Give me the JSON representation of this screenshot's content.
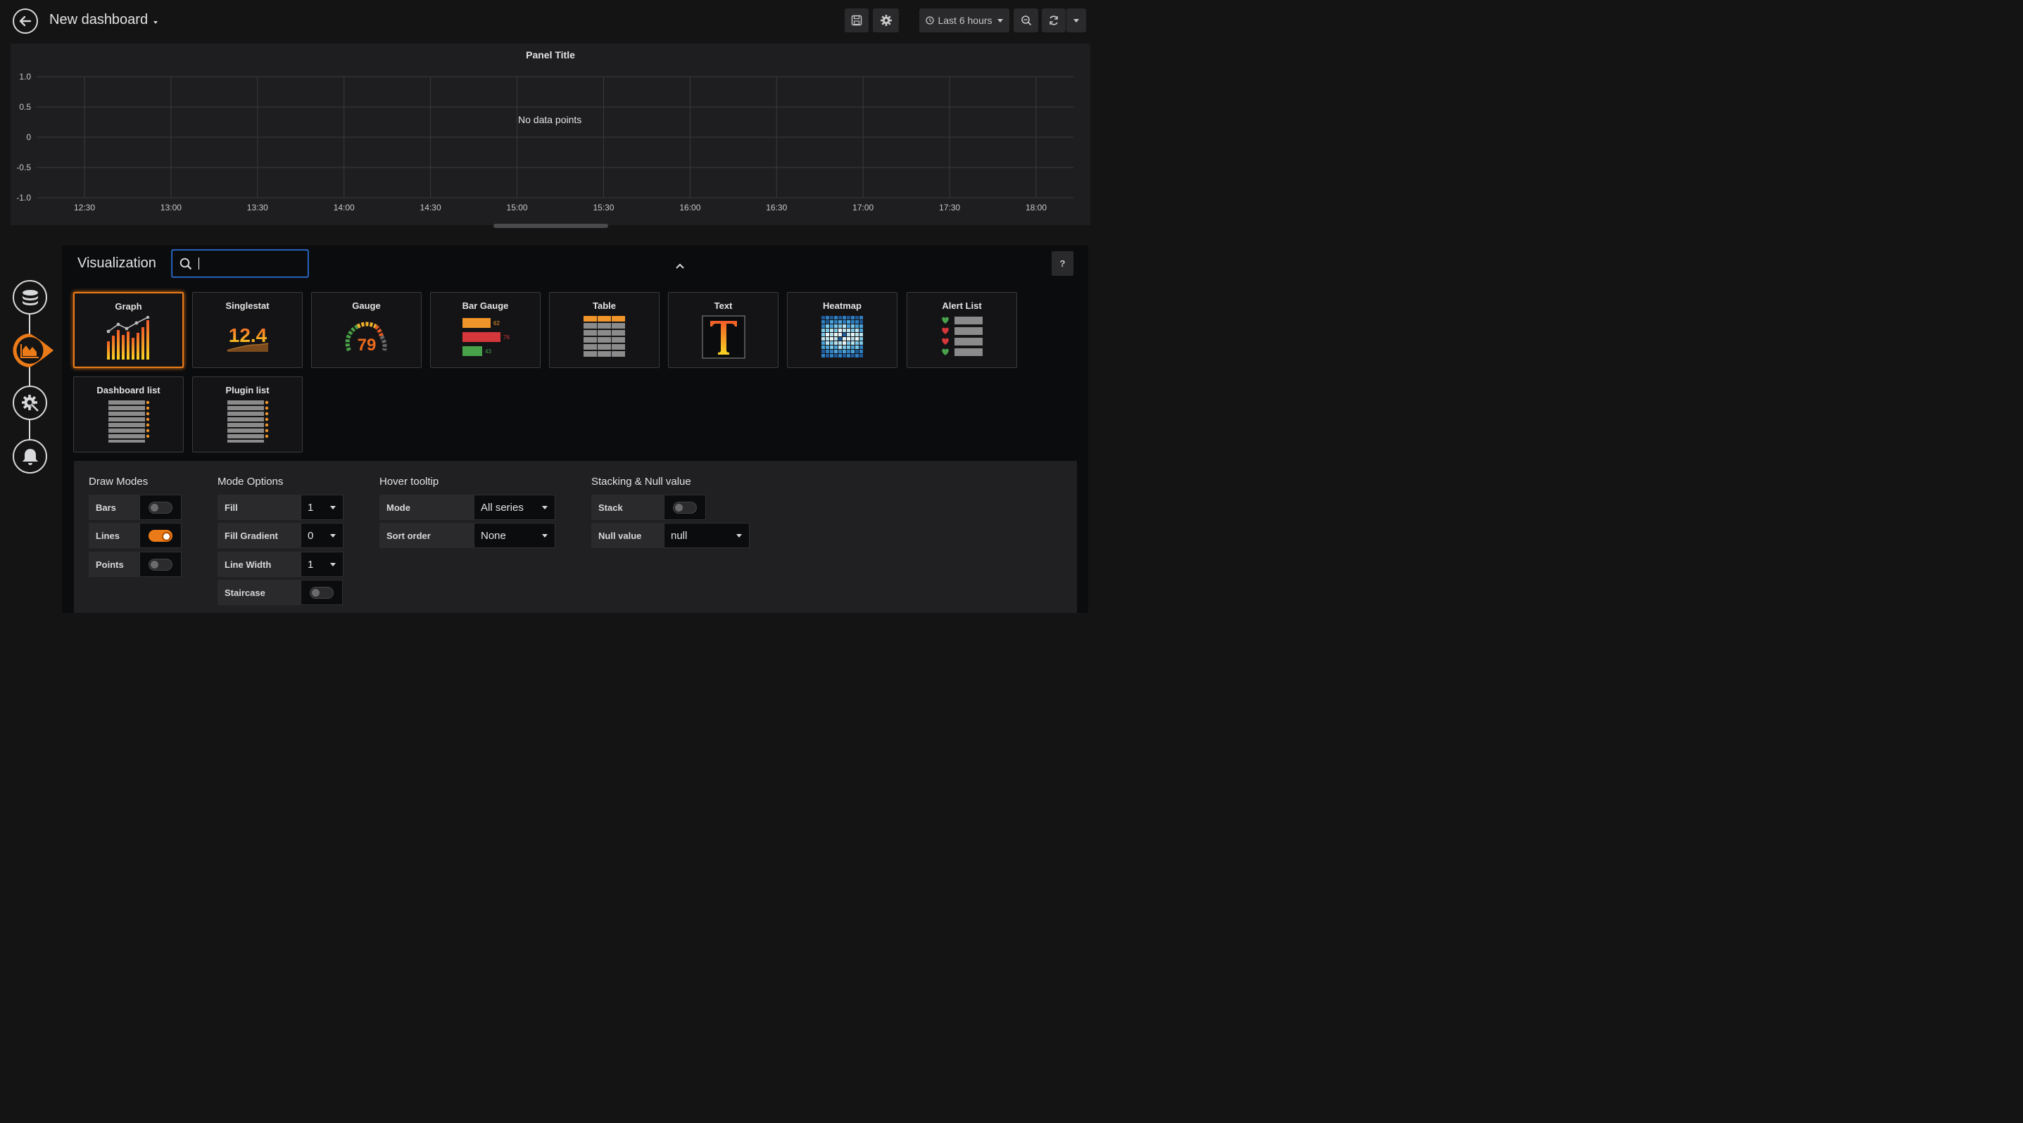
{
  "header": {
    "title": "New dashboard",
    "time_range": "Last 6 hours"
  },
  "panel": {
    "title": "Panel Title",
    "no_data": "No data points"
  },
  "chart_data": {
    "type": "line",
    "title": "Panel Title",
    "x": [
      "12:30",
      "13:00",
      "13:30",
      "14:00",
      "14:30",
      "15:00",
      "15:30",
      "16:00",
      "16:30",
      "17:00",
      "17:30",
      "18:00"
    ],
    "y_ticks": [
      "1.0",
      "0.5",
      "0",
      "-0.5",
      "-1.0"
    ],
    "ylim": [
      -1.0,
      1.0
    ],
    "series": [],
    "annotation": "No data points"
  },
  "visualization": {
    "heading": "Visualization",
    "search_value": "",
    "types": [
      {
        "label": "Graph",
        "selected": true
      },
      {
        "label": "Singlestat",
        "value": "12.4"
      },
      {
        "label": "Gauge",
        "value": "79"
      },
      {
        "label": "Bar Gauge",
        "values": [
          "62",
          "76",
          "43"
        ]
      },
      {
        "label": "Table"
      },
      {
        "label": "Text"
      },
      {
        "label": "Heatmap"
      },
      {
        "label": "Alert List"
      },
      {
        "label": "Dashboard list"
      },
      {
        "label": "Plugin list"
      }
    ],
    "help": "?"
  },
  "options": {
    "draw_modes": {
      "title": "Draw Modes",
      "bars": "Bars",
      "lines": "Lines",
      "points": "Points"
    },
    "mode_options": {
      "title": "Mode Options",
      "fill": "Fill",
      "fill_value": "1",
      "fill_gradient": "Fill Gradient",
      "fill_gradient_value": "0",
      "line_width": "Line Width",
      "line_width_value": "1",
      "staircase": "Staircase"
    },
    "hover_tooltip": {
      "title": "Hover tooltip",
      "mode": "Mode",
      "mode_value": "All series",
      "sort_order": "Sort order",
      "sort_order_value": "None"
    },
    "stacking": {
      "title": "Stacking & Null value",
      "stack": "Stack",
      "null_value": "Null value",
      "null_value_value": "null"
    }
  },
  "colors": {
    "accent": "#eb7b18",
    "background": "#141415",
    "panel": "#1e1e20"
  }
}
